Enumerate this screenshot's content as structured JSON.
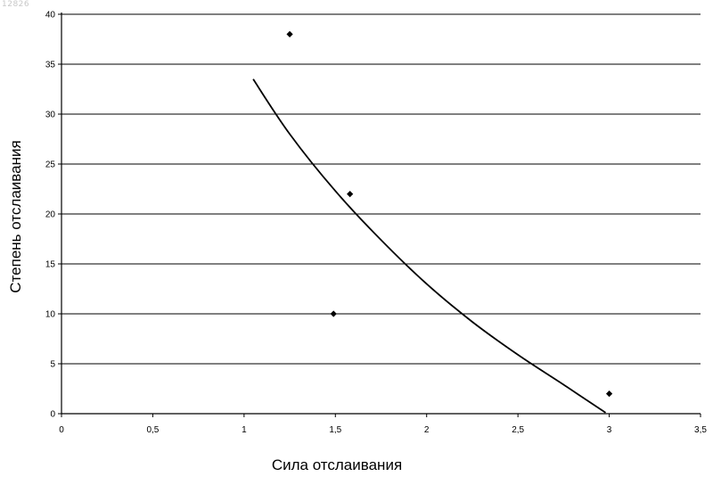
{
  "watermark": "12826",
  "chart_data": {
    "type": "scatter",
    "title": "",
    "xlabel": "Сила отслаивания",
    "ylabel": "Степень отслаивания",
    "xlim": [
      0,
      3.5
    ],
    "ylim": [
      0,
      40
    ],
    "xticks": [
      "0",
      "0,5",
      "1",
      "1,5",
      "2",
      "2,5",
      "3",
      "3,5"
    ],
    "yticks": [
      "0",
      "5",
      "10",
      "15",
      "20",
      "25",
      "30",
      "35",
      "40"
    ],
    "grid": "horizontal",
    "legend": "none",
    "series": [
      {
        "marker": "diamond",
        "points": [
          {
            "x": 1.25,
            "y": 38
          },
          {
            "x": 1.58,
            "y": 22
          },
          {
            "x": 1.49,
            "y": 10
          },
          {
            "x": 3.0,
            "y": 2
          }
        ]
      }
    ],
    "trendline": {
      "type": "curve",
      "points": [
        {
          "x": 1.05,
          "y": 33.5
        },
        {
          "x": 1.25,
          "y": 28.0
        },
        {
          "x": 1.5,
          "y": 22.3
        },
        {
          "x": 1.75,
          "y": 17.4
        },
        {
          "x": 2.0,
          "y": 13.0
        },
        {
          "x": 2.25,
          "y": 9.2
        },
        {
          "x": 2.5,
          "y": 5.9
        },
        {
          "x": 2.75,
          "y": 2.9
        },
        {
          "x": 2.98,
          "y": 0.1
        }
      ]
    },
    "colors": {
      "markers": "#000000",
      "gridlines": "#000000",
      "trendline": "#000000"
    }
  }
}
